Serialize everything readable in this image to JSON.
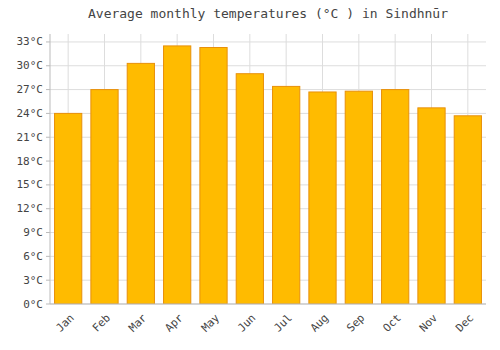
{
  "chart_data": {
    "type": "bar",
    "title": "Average monthly temperatures (°C ) in Sindhnūr",
    "categories": [
      "Jan",
      "Feb",
      "Mar",
      "Apr",
      "May",
      "Jun",
      "Jul",
      "Aug",
      "Sep",
      "Oct",
      "Nov",
      "Dec"
    ],
    "values": [
      24.0,
      27.0,
      30.3,
      32.5,
      32.3,
      29.0,
      27.4,
      26.7,
      26.8,
      27.0,
      24.7,
      23.7
    ],
    "color": "#FFBB00",
    "ylim": [
      0,
      34
    ],
    "yticks": [
      {
        "value": 0,
        "label": "0°C"
      },
      {
        "value": 3,
        "label": "3°C"
      },
      {
        "value": 6,
        "label": "6°C"
      },
      {
        "value": 9,
        "label": "9°C"
      },
      {
        "value": 12,
        "label": "12°C"
      },
      {
        "value": 15,
        "label": "15°C"
      },
      {
        "value": 18,
        "label": "18°C"
      },
      {
        "value": 21,
        "label": "21°C"
      },
      {
        "value": 24,
        "label": "24°C"
      },
      {
        "value": 27,
        "label": "27°C"
      },
      {
        "value": 30,
        "label": "30°C"
      },
      {
        "value": 33,
        "label": "33°C"
      }
    ],
    "grid": true
  }
}
